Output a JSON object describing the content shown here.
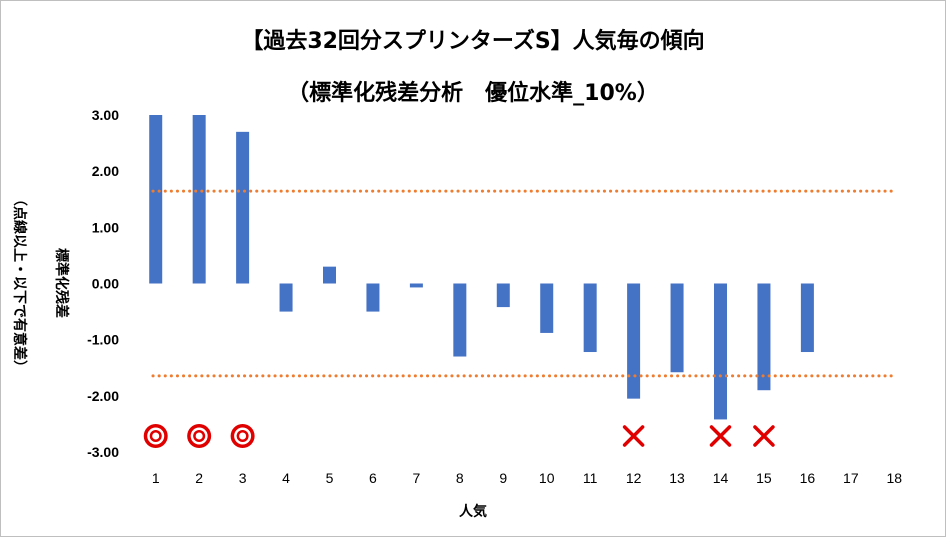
{
  "chart_data": {
    "type": "bar",
    "title_line1": "【過去32回分スプリンターズS】人気毎の傾向",
    "title_line2": "（標準化残差分析　優位水準_10%）",
    "xlabel": "人気",
    "ylabel_line1": "標準化残差",
    "ylabel_line2": "（点線以上・以下で有意差）",
    "categories": [
      "1",
      "2",
      "3",
      "4",
      "5",
      "6",
      "7",
      "8",
      "9",
      "10",
      "11",
      "12",
      "13",
      "14",
      "15",
      "16",
      "17",
      "18"
    ],
    "values": [
      3.0,
      3.0,
      2.7,
      -0.5,
      0.3,
      -0.5,
      -0.07,
      -1.3,
      -0.42,
      -0.88,
      -1.22,
      -2.05,
      -1.58,
      -2.42,
      -1.9,
      -1.22,
      null,
      null
    ],
    "ylim": [
      -3.0,
      3.0
    ],
    "yticks": [
      "3.00",
      "2.00",
      "1.00",
      "0.00",
      "-1.00",
      "-2.00",
      "-3.00"
    ],
    "ytick_values": [
      3,
      2,
      1,
      0,
      -1,
      -2,
      -3
    ],
    "threshold_upper": 1.645,
    "threshold_lower": -1.645,
    "markers": [
      {
        "category": "1",
        "symbol": "circle"
      },
      {
        "category": "2",
        "symbol": "circle"
      },
      {
        "category": "3",
        "symbol": "circle"
      },
      {
        "category": "12",
        "symbol": "cross"
      },
      {
        "category": "14",
        "symbol": "cross"
      },
      {
        "category": "15",
        "symbol": "cross"
      }
    ],
    "grid": false,
    "legend": "none",
    "colors": {
      "bar": "#4472C4",
      "threshold": "#ED7D31",
      "marker": "#E00000",
      "axis": "#7f7f7f"
    }
  }
}
